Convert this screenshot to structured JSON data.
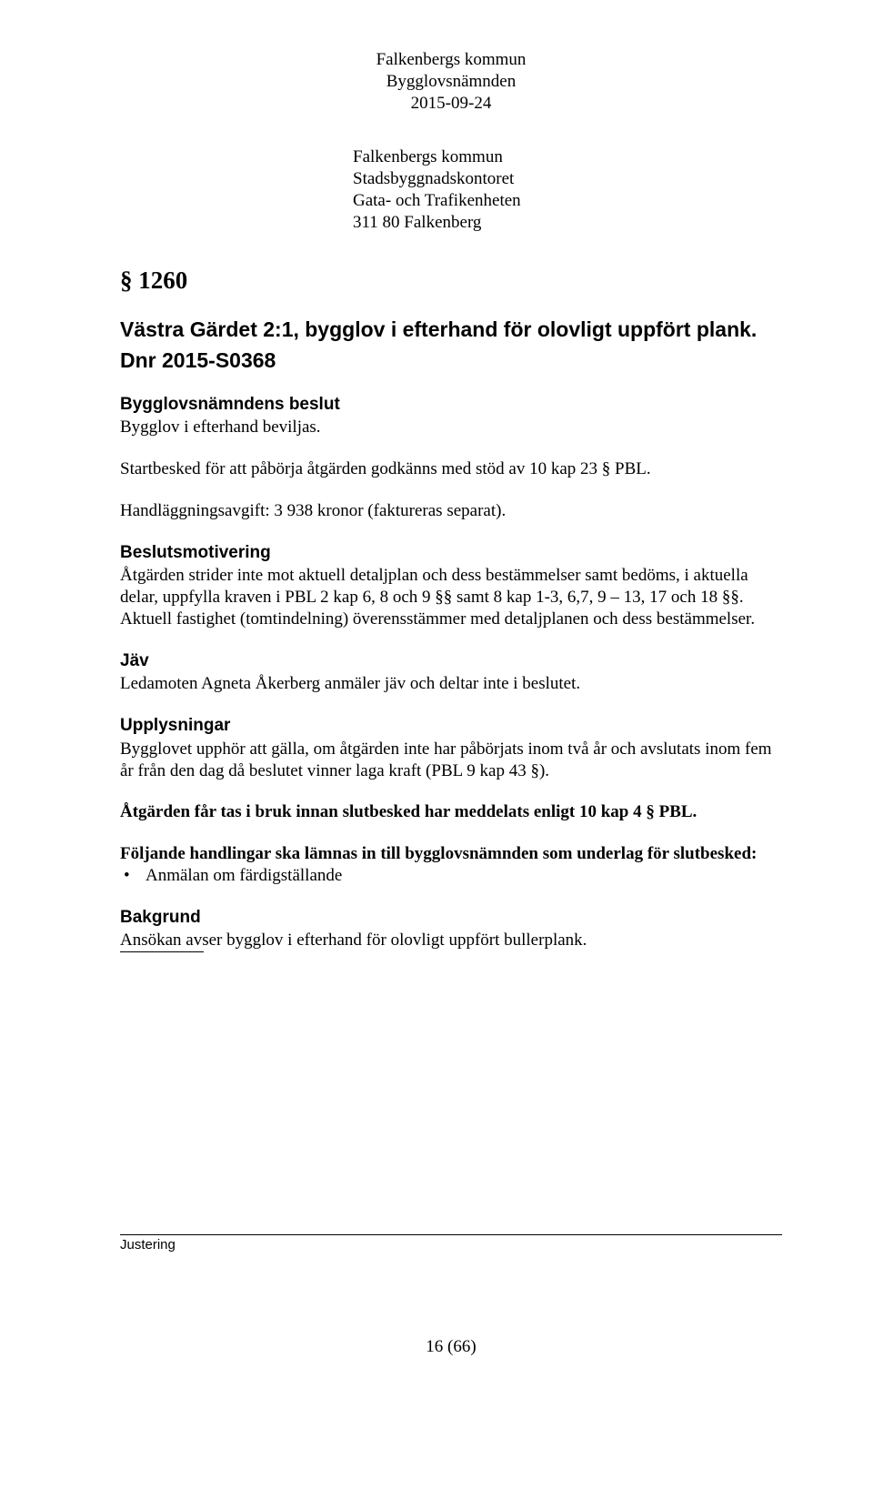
{
  "header": {
    "line1": "Falkenbergs kommun",
    "line2": "Bygglovsnämnden",
    "line3": "2015-09-24"
  },
  "recipient": {
    "line1": "Falkenbergs kommun",
    "line2": "Stadsbyggnadskontoret",
    "line3": "Gata- och Trafikenheten",
    "line4": "311 80 Falkenberg"
  },
  "section_number": "§ 1260",
  "title": "Västra Gärdet 2:1, bygglov i efterhand för olovligt uppfört plank.",
  "dnr": "Dnr 2015-S0368",
  "decision": {
    "heading": "Bygglovsnämndens beslut",
    "p1": "Bygglov i efterhand beviljas.",
    "p2": "Startbesked för att påbörja åtgärden godkänns med stöd av 10 kap 23 § PBL.",
    "p3": "Handläggningsavgift: 3 938 kronor (faktureras separat)."
  },
  "motivation": {
    "heading": "Beslutsmotivering",
    "p1": "Åtgärden strider inte mot aktuell detaljplan och dess bestämmelser samt bedöms, i aktuella delar, uppfylla kraven i PBL 2 kap 6, 8 och 9 §§ samt 8 kap 1-3, 6,7, 9 – 13, 17 och 18 §§. Aktuell fastighet (tomtindelning) överensstämmer med detaljplanen och dess bestämmelser."
  },
  "jav": {
    "heading": "Jäv",
    "p1": "Ledamoten Agneta Åkerberg anmäler jäv och deltar inte i beslutet."
  },
  "info": {
    "heading": "Upplysningar",
    "p1": "Bygglovet upphör att gälla, om åtgärden inte har påbörjats inom två år och avslutats inom fem år från den dag då beslutet vinner laga kraft (PBL 9 kap 43 §).",
    "p2": "Åtgärden får tas i bruk innan slutbesked har meddelats enligt 10 kap 4 § PBL.",
    "p3": "Följande handlingar ska lämnas in till bygglovsnämnden som underlag för slutbesked:",
    "bullet1": "Anmälan om färdigställande"
  },
  "background": {
    "heading": "Bakgrund",
    "p1": "Ansökan avser bygglov i efterhand för olovligt uppfört bullerplank."
  },
  "footer": {
    "label": "Justering",
    "page": "16 (66)"
  }
}
